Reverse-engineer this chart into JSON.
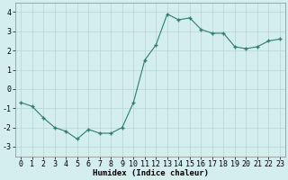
{
  "x": [
    0,
    1,
    2,
    3,
    4,
    5,
    6,
    7,
    8,
    9,
    10,
    11,
    12,
    13,
    14,
    15,
    16,
    17,
    18,
    19,
    20,
    21,
    22,
    23
  ],
  "y": [
    -0.7,
    -0.9,
    -1.5,
    -2.0,
    -2.2,
    -2.6,
    -2.1,
    -2.3,
    -2.3,
    -2.0,
    -0.7,
    1.5,
    2.3,
    3.9,
    3.6,
    3.7,
    3.1,
    2.9,
    2.9,
    2.2,
    2.1,
    2.2,
    2.5,
    2.6
  ],
  "line_color": "#2e7d6e",
  "marker": "+",
  "marker_size": 3.5,
  "bg_color": "#d4eeee",
  "grid_color": "#c0dcdc",
  "xlabel": "Humidex (Indice chaleur)",
  "xlim": [
    -0.5,
    23.5
  ],
  "ylim": [
    -3.5,
    4.5
  ],
  "yticks": [
    -3,
    -2,
    -1,
    0,
    1,
    2,
    3,
    4
  ],
  "xticks": [
    0,
    1,
    2,
    3,
    4,
    5,
    6,
    7,
    8,
    9,
    10,
    11,
    12,
    13,
    14,
    15,
    16,
    17,
    18,
    19,
    20,
    21,
    22,
    23
  ],
  "xlabel_fontsize": 6.5,
  "tick_fontsize": 6
}
